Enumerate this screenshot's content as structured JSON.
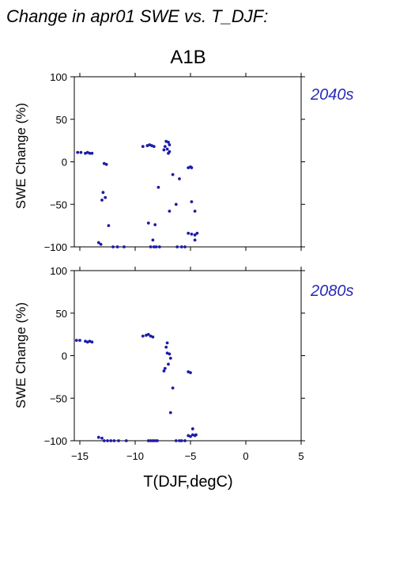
{
  "page_title": "Change in apr01 SWE vs. T_DJF:",
  "scenario": "A1B",
  "chart_data": [
    {
      "type": "scatter",
      "period_label": "2040s",
      "ylabel": "SWE Change (%)",
      "xlabel": "",
      "xlim": [
        -15.5,
        5
      ],
      "ylim": [
        -100,
        100
      ],
      "xticks": [
        -15,
        -10,
        -5,
        0,
        5
      ],
      "yticks": [
        -100,
        -50,
        0,
        50,
        100
      ],
      "xtick_labels": [],
      "ytick_labels": [
        "−100",
        "−50",
        "0",
        "50",
        "100"
      ],
      "marker_color": "#1c1ca8",
      "points": [
        [
          -15.2,
          11
        ],
        [
          -14.9,
          11
        ],
        [
          -14.5,
          10
        ],
        [
          -14.3,
          11
        ],
        [
          -14.1,
          10
        ],
        [
          -13.9,
          10
        ],
        [
          -12.8,
          -2
        ],
        [
          -12.6,
          -3
        ],
        [
          -12.9,
          -36
        ],
        [
          -12.7,
          -42
        ],
        [
          -13.0,
          -45
        ],
        [
          -12.4,
          -75
        ],
        [
          -13.3,
          -95
        ],
        [
          -13.1,
          -97
        ],
        [
          -12.0,
          -100
        ],
        [
          -11.6,
          -100
        ],
        [
          -11.0,
          -100
        ],
        [
          -9.3,
          18
        ],
        [
          -8.9,
          19
        ],
        [
          -8.7,
          20
        ],
        [
          -8.5,
          19
        ],
        [
          -8.3,
          18
        ],
        [
          -7.2,
          24
        ],
        [
          -7.0,
          23
        ],
        [
          -6.9,
          20
        ],
        [
          -7.3,
          18
        ],
        [
          -7.1,
          15
        ],
        [
          -7.4,
          14
        ],
        [
          -6.9,
          12
        ],
        [
          -7.0,
          10
        ],
        [
          -6.6,
          -15
        ],
        [
          -6.0,
          -20
        ],
        [
          -7.9,
          -30
        ],
        [
          -6.3,
          -50
        ],
        [
          -6.9,
          -58
        ],
        [
          -8.8,
          -72
        ],
        [
          -8.2,
          -74
        ],
        [
          -8.4,
          -92
        ],
        [
          -8.6,
          -100
        ],
        [
          -8.3,
          -100
        ],
        [
          -8.1,
          -100
        ],
        [
          -7.8,
          -100
        ],
        [
          -6.2,
          -100
        ],
        [
          -5.8,
          -100
        ],
        [
          -5.5,
          -100
        ],
        [
          -5.2,
          -7
        ],
        [
          -5.0,
          -6
        ],
        [
          -4.9,
          -7
        ],
        [
          -4.9,
          -47
        ],
        [
          -4.6,
          -58
        ],
        [
          -5.2,
          -84
        ],
        [
          -4.9,
          -85
        ],
        [
          -4.6,
          -86
        ],
        [
          -4.4,
          -84
        ],
        [
          -4.6,
          -92
        ]
      ]
    },
    {
      "type": "scatter",
      "period_label": "2080s",
      "ylabel": "SWE Change (%)",
      "xlabel": "T(DJF,degC)",
      "xlim": [
        -15.5,
        5
      ],
      "ylim": [
        -100,
        100
      ],
      "xticks": [
        -15,
        -10,
        -5,
        0,
        5
      ],
      "yticks": [
        -100,
        -50,
        0,
        50,
        100
      ],
      "xtick_labels": [
        "−15",
        "−10",
        "−5",
        "0",
        "5"
      ],
      "ytick_labels": [
        "−100",
        "−50",
        "0",
        "50",
        "100"
      ],
      "marker_color": "#1c1ca8",
      "points": [
        [
          -15.3,
          18
        ],
        [
          -15.0,
          18
        ],
        [
          -14.5,
          17
        ],
        [
          -14.3,
          16
        ],
        [
          -14.1,
          17
        ],
        [
          -13.9,
          16
        ],
        [
          -13.3,
          -96
        ],
        [
          -13.0,
          -97
        ],
        [
          -12.8,
          -100
        ],
        [
          -12.5,
          -100
        ],
        [
          -12.2,
          -100
        ],
        [
          -11.9,
          -100
        ],
        [
          -11.5,
          -100
        ],
        [
          -10.8,
          -100
        ],
        [
          -9.3,
          23
        ],
        [
          -9.0,
          24
        ],
        [
          -8.8,
          25
        ],
        [
          -8.6,
          23
        ],
        [
          -8.4,
          22
        ],
        [
          -8.8,
          -100
        ],
        [
          -8.6,
          -100
        ],
        [
          -8.4,
          -100
        ],
        [
          -8.2,
          -100
        ],
        [
          -8.0,
          -100
        ],
        [
          -7.1,
          15
        ],
        [
          -7.2,
          10
        ],
        [
          -7.1,
          3
        ],
        [
          -6.9,
          2
        ],
        [
          -6.8,
          -3
        ],
        [
          -7.3,
          -15
        ],
        [
          -7.4,
          -18
        ],
        [
          -7.0,
          -10
        ],
        [
          -6.6,
          -38
        ],
        [
          -6.8,
          -67
        ],
        [
          -6.3,
          -100
        ],
        [
          -6.0,
          -100
        ],
        [
          -5.8,
          -100
        ],
        [
          -5.5,
          -100
        ],
        [
          -5.2,
          -19
        ],
        [
          -5.0,
          -20
        ],
        [
          -5.2,
          -94
        ],
        [
          -5.0,
          -95
        ],
        [
          -4.8,
          -93
        ],
        [
          -4.6,
          -94
        ],
        [
          -4.5,
          -93
        ],
        [
          -4.8,
          -86
        ]
      ]
    }
  ]
}
